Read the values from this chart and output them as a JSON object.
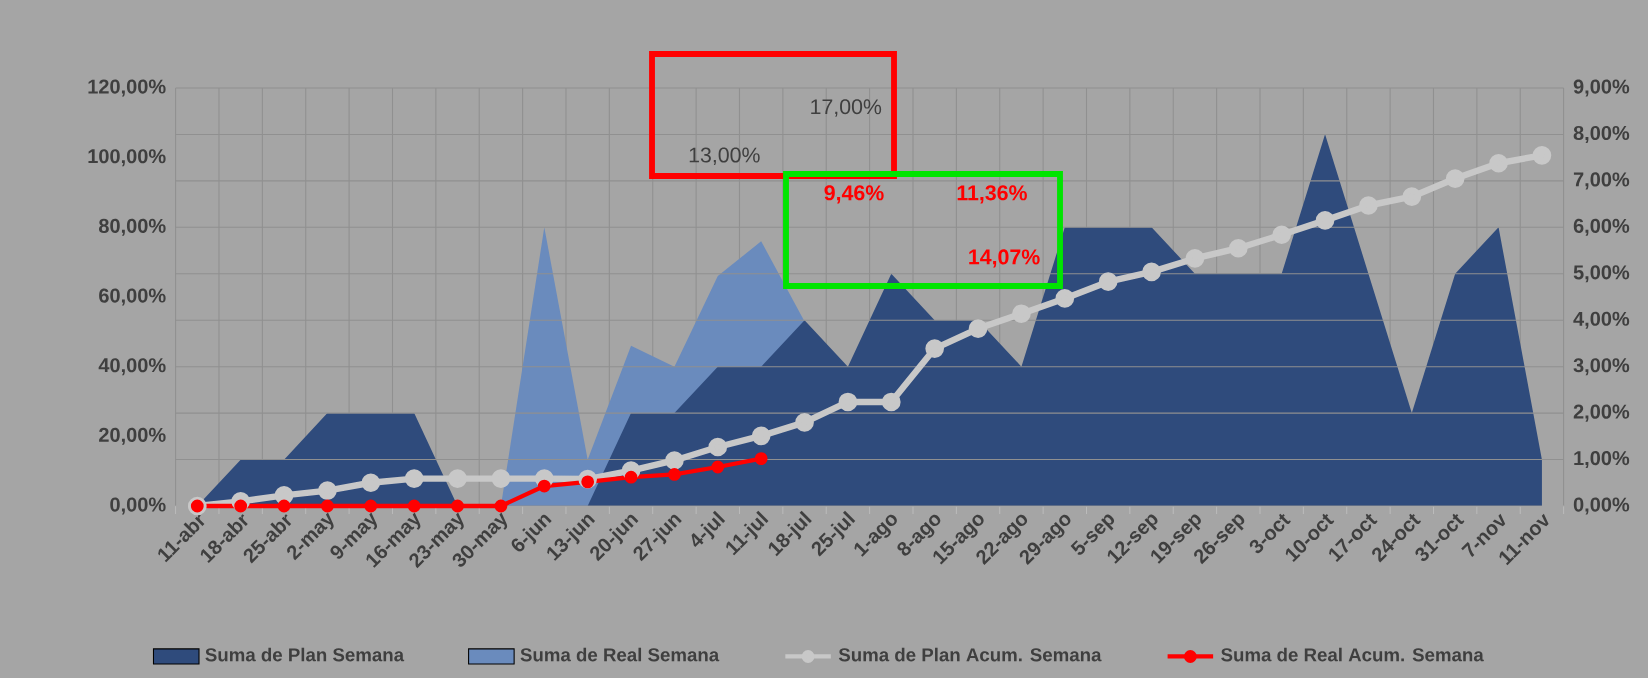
{
  "chart_data": {
    "type": "area",
    "categories": [
      "11-abr",
      "18-abr",
      "25-abr",
      "2-may",
      "9-may",
      "16-may",
      "23-may",
      "30-may",
      "6-jun",
      "13-jun",
      "20-jun",
      "27-jun",
      "4-jul",
      "11-jul",
      "18-jul",
      "25-jul",
      "1-ago",
      "8-ago",
      "15-ago",
      "22-ago",
      "29-ago",
      "5-sep",
      "12-sep",
      "19-sep",
      "26-sep",
      "3-oct",
      "10-oct",
      "17-oct",
      "24-oct",
      "31-oct",
      "7-nov",
      "11-nov"
    ],
    "series": [
      {
        "name": "Suma de Plan Semana",
        "color": "#2f4b7c",
        "values": [
          0,
          13.3,
          13.3,
          26.7,
          26.7,
          26.7,
          0,
          0,
          0,
          0,
          26.7,
          26.7,
          40,
          40,
          53.3,
          40,
          66.7,
          53.3,
          53.3,
          40,
          80,
          80,
          80,
          66.7,
          66.7,
          66.7,
          106.7,
          66.7,
          26.7,
          66.7,
          80,
          13.3
        ]
      },
      {
        "name": "Suma de Real Semana",
        "color": "#6a8bbd",
        "values": [
          0,
          0,
          0,
          0,
          0,
          0,
          0,
          0,
          80,
          13.3,
          46,
          40,
          66,
          76,
          53,
          0,
          null,
          null,
          null,
          null,
          null,
          null,
          null,
          null,
          null,
          null,
          null,
          null,
          null,
          null,
          null,
          null
        ]
      },
      {
        "name": "Suma de Plan Acum. Semana",
        "type": "line",
        "axis": "y2",
        "marker": "circle",
        "color": "#c8c8c8",
        "values": [
          0,
          0.1,
          0.23,
          0.33,
          0.5,
          0.59,
          0.59,
          0.59,
          0.59,
          0.58,
          0.76,
          0.98,
          1.27,
          1.51,
          1.8,
          2.24,
          2.24,
          3.39,
          3.82,
          4.14,
          4.47,
          4.83,
          5.04,
          5.33,
          5.55,
          5.84,
          6.15,
          6.47,
          6.66,
          7.05,
          7.38,
          7.55
        ]
      },
      {
        "name": "Suma de Real Acum. Semana",
        "type": "line",
        "axis": "y2",
        "marker": "circle",
        "color": "#ff0000",
        "values": [
          0,
          0,
          0,
          0,
          0,
          0,
          0,
          0,
          0.43,
          0.52,
          0.62,
          0.68,
          0.84,
          1.02,
          null,
          null,
          null,
          null,
          null,
          null,
          null,
          null,
          null,
          null,
          null,
          null,
          null,
          null,
          null,
          null,
          null,
          null
        ]
      }
    ],
    "ylim": [
      0,
      120
    ],
    "yticks": [
      {
        "value": 0,
        "label": "0,00%"
      },
      {
        "value": 20,
        "label": "20,00%"
      },
      {
        "value": 40,
        "label": "40,00%"
      },
      {
        "value": 60,
        "label": "60,00%"
      },
      {
        "value": 80,
        "label": "80,00%"
      },
      {
        "value": 100,
        "label": "100,00%"
      },
      {
        "value": 120,
        "label": "120,00%"
      }
    ],
    "y2lim": [
      0,
      9
    ],
    "y2ticks": [
      {
        "value": 0,
        "label": "0,00%"
      },
      {
        "value": 1,
        "label": "1,00%"
      },
      {
        "value": 2,
        "label": "2,00%"
      },
      {
        "value": 3,
        "label": "3,00%"
      },
      {
        "value": 4,
        "label": "4,00%"
      },
      {
        "value": 5,
        "label": "5,00%"
      },
      {
        "value": 6,
        "label": "6,00%"
      },
      {
        "value": 7,
        "label": "7,00%"
      },
      {
        "value": 8,
        "label": "8,00%"
      },
      {
        "value": 9,
        "label": "9,00%"
      }
    ],
    "annotations": [
      "13,00%",
      "17,00%",
      "9,46%",
      "11,36%",
      "14,07%"
    ],
    "grid": true,
    "legend": "bottom"
  }
}
